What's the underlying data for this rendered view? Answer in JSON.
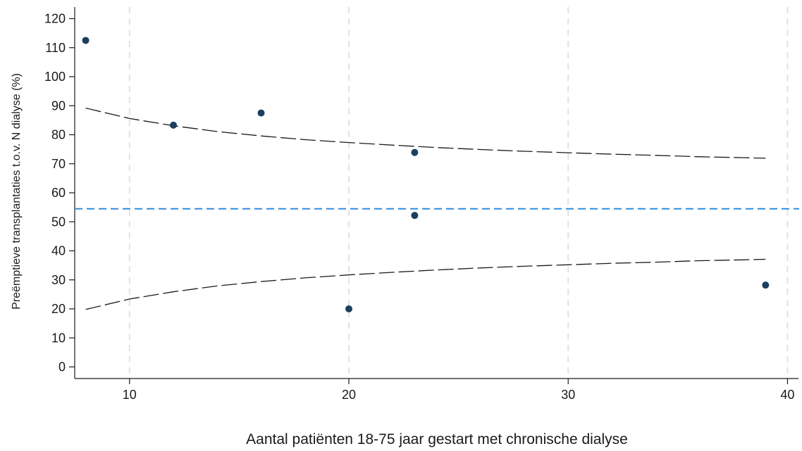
{
  "chart_data": {
    "type": "scatter",
    "title": "",
    "xlabel": "Aantal patiënten 18-75 jaar gestart met chronische dialyse",
    "ylabel": "Preëmptieve transplantaties t.o.v. N dialyse (%)",
    "xlim": [
      7.5,
      40.5
    ],
    "ylim": [
      -4,
      124
    ],
    "x_ticks": [
      10,
      20,
      30,
      40
    ],
    "y_ticks": [
      0,
      10,
      20,
      30,
      40,
      50,
      60,
      70,
      80,
      90,
      100,
      110,
      120
    ],
    "grid": "vertical dashed gridlines at x ticks",
    "points": [
      {
        "x": 8,
        "y": 112.5
      },
      {
        "x": 12,
        "y": 83.3
      },
      {
        "x": 16,
        "y": 87.5
      },
      {
        "x": 20,
        "y": 20
      },
      {
        "x": 23,
        "y": 73.9
      },
      {
        "x": 23,
        "y": 52.2
      },
      {
        "x": 39,
        "y": 28.2
      }
    ],
    "reference_line": {
      "y": 54.5,
      "style": "dashed",
      "color": "#2f8be0"
    },
    "control_limits": {
      "x": [
        8,
        10,
        12,
        14,
        16,
        18,
        20,
        22,
        24,
        26,
        28,
        30,
        32,
        34,
        36,
        38,
        39
      ],
      "upper": [
        89.2,
        85.6,
        83.1,
        81.1,
        79.6,
        78.3,
        77.3,
        76.4,
        75.6,
        74.9,
        74.3,
        73.8,
        73.3,
        72.9,
        72.4,
        72.1,
        71.9
      ],
      "lower": [
        19.8,
        23.4,
        25.9,
        27.9,
        29.4,
        30.7,
        31.7,
        32.6,
        33.4,
        34.1,
        34.7,
        35.2,
        35.7,
        36.1,
        36.6,
        36.9,
        37.1
      ]
    },
    "colors": {
      "points": "#1b3f5e",
      "reference": "#2f8be0",
      "limits": "#1a1a1a",
      "grid": "#e2e2e2"
    }
  }
}
